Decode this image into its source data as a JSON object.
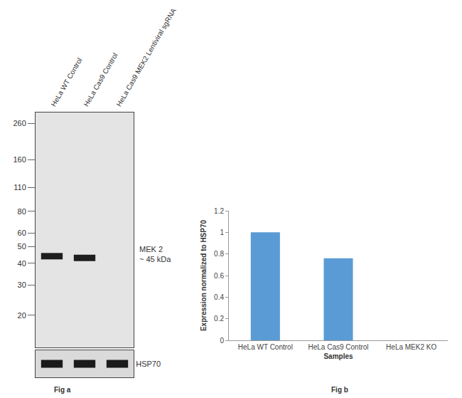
{
  "chart_data": {
    "type": "bar",
    "categories": [
      "HeLa WT Control",
      "HeLa Cas9 Control",
      "HeLa MEK2 KO"
    ],
    "values": [
      1,
      0.76,
      0
    ],
    "color": "#5b9bd5",
    "x_label": "Samples",
    "y_label": "Expression normalized to HSP70",
    "ylim": [
      0,
      1.2
    ],
    "yticks": [
      0,
      0.2,
      0.4,
      0.6,
      0.8,
      1,
      1.2
    ],
    "grid": false
  },
  "blot": {
    "lanes": [
      "HeLa WT Control",
      "HeLa Cas9 Control",
      "HeLa Cas9 MEK2 Lentiviral sgRNA"
    ],
    "marker_kda": [
      260,
      160,
      110,
      80,
      60,
      50,
      40,
      30,
      20
    ],
    "ylim": [
      13,
      300
    ],
    "log": "y",
    "bands": [
      {
        "target": "MEK 2",
        "label": [
          "MEK 2",
          "~ 45 kDa"
        ],
        "kda": 45,
        "lanes_kda": [
          44,
          43,
          null
        ]
      }
    ],
    "loading_control": {
      "target": "HSP70",
      "present": [
        true,
        true,
        true
      ]
    }
  },
  "captions": [
    "Fig a",
    "Fig b"
  ]
}
